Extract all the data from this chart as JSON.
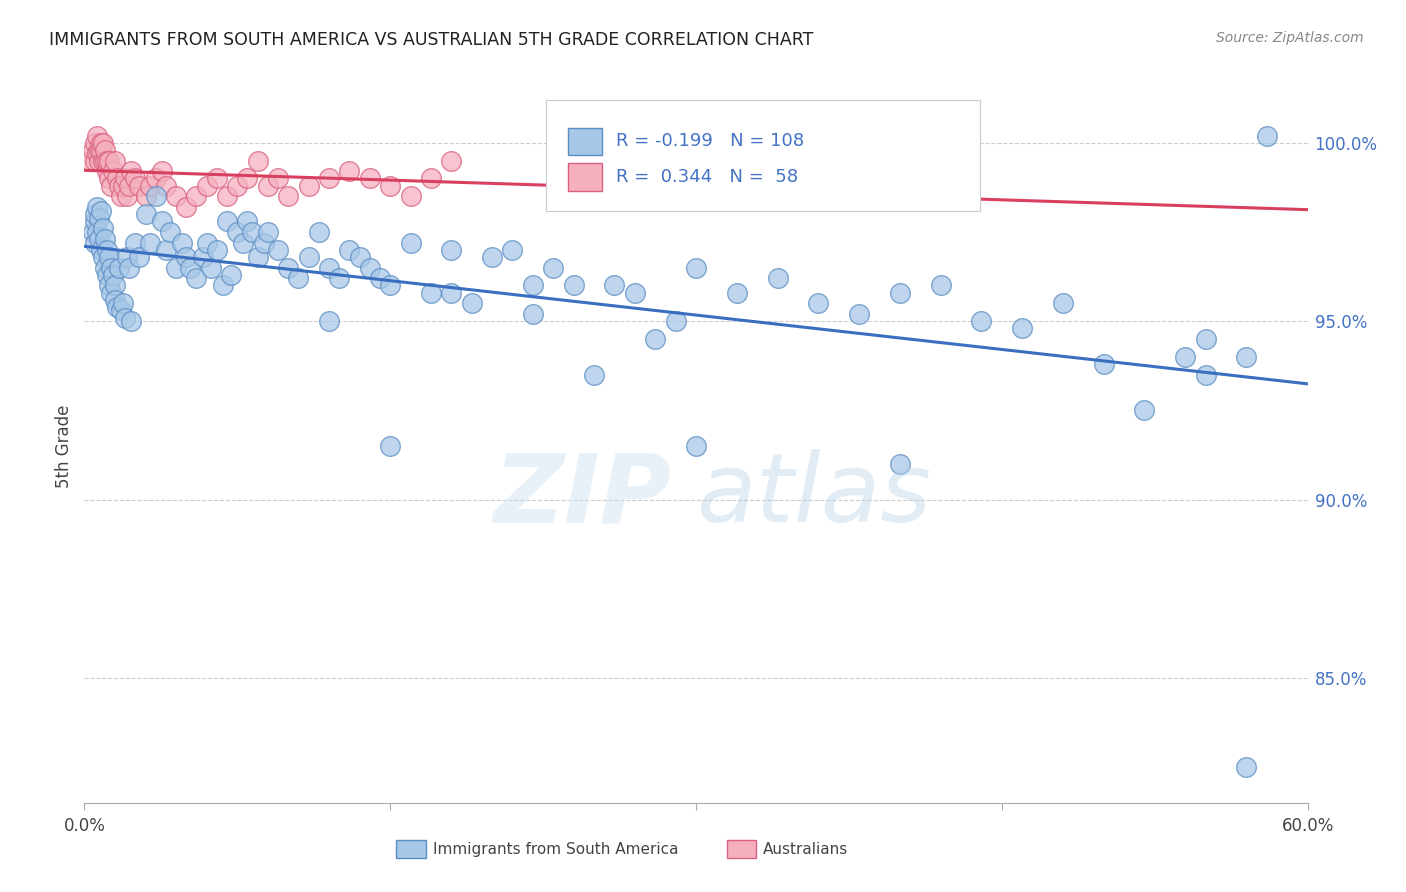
{
  "title": "IMMIGRANTS FROM SOUTH AMERICA VS AUSTRALIAN 5TH GRADE CORRELATION CHART",
  "source": "Source: ZipAtlas.com",
  "ylabel": "5th Grade",
  "r_blue": -0.199,
  "n_blue": 108,
  "r_pink": 0.344,
  "n_pink": 58,
  "xlim": [
    0.0,
    60.0
  ],
  "ylim": [
    81.5,
    101.5
  ],
  "color_blue_fill": "#a8c8e8",
  "color_blue_edge": "#5b8ec4",
  "color_blue_line": "#3a6fbf",
  "color_pink_fill": "#f5b0c0",
  "color_pink_edge": "#d96080",
  "color_pink_line": "#d94060",
  "legend_label_blue": "Immigrants from South America",
  "legend_label_pink": "Australians",
  "right_yticks": [
    85.0,
    90.0,
    95.0,
    100.0
  ],
  "right_ytick_labels": [
    "85.0%",
    "90.0%",
    "95.0%",
    "100.0%"
  ],
  "blue_x": [
    0.4,
    0.5,
    0.5,
    0.5,
    0.6,
    0.6,
    0.7,
    0.7,
    0.8,
    0.8,
    0.9,
    0.9,
    1.0,
    1.0,
    1.1,
    1.1,
    1.2,
    1.2,
    1.3,
    1.3,
    1.4,
    1.5,
    1.5,
    1.6,
    1.7,
    1.8,
    1.9,
    2.0,
    2.1,
    2.2,
    2.3,
    2.5,
    2.7,
    3.0,
    3.2,
    3.5,
    3.8,
    4.0,
    4.2,
    4.5,
    4.8,
    5.0,
    5.2,
    5.5,
    5.8,
    6.0,
    6.2,
    6.5,
    6.8,
    7.0,
    7.2,
    7.5,
    7.8,
    8.0,
    8.2,
    8.5,
    8.8,
    9.0,
    9.5,
    10.0,
    10.5,
    11.0,
    11.5,
    12.0,
    12.5,
    13.0,
    13.5,
    14.0,
    14.5,
    15.0,
    16.0,
    17.0,
    18.0,
    19.0,
    20.0,
    21.0,
    22.0,
    23.0,
    24.0,
    25.0,
    26.0,
    27.0,
    28.0,
    29.0,
    30.0,
    32.0,
    34.0,
    36.0,
    38.0,
    40.0,
    42.0,
    44.0,
    46.0,
    48.0,
    50.0,
    52.0,
    54.0,
    55.0,
    57.0,
    58.0,
    12.0,
    15.0,
    18.0,
    22.0,
    30.0,
    40.0,
    55.0,
    57.0
  ],
  "blue_y": [
    97.5,
    97.8,
    97.2,
    98.0,
    98.2,
    97.5,
    97.9,
    97.3,
    98.1,
    97.0,
    97.6,
    96.8,
    97.3,
    96.5,
    97.0,
    96.3,
    96.8,
    96.0,
    96.5,
    95.8,
    96.3,
    96.0,
    95.6,
    95.4,
    96.5,
    95.3,
    95.5,
    95.1,
    96.8,
    96.5,
    95.0,
    97.2,
    96.8,
    98.0,
    97.2,
    98.5,
    97.8,
    97.0,
    97.5,
    96.5,
    97.2,
    96.8,
    96.5,
    96.2,
    96.8,
    97.2,
    96.5,
    97.0,
    96.0,
    97.8,
    96.3,
    97.5,
    97.2,
    97.8,
    97.5,
    96.8,
    97.2,
    97.5,
    97.0,
    96.5,
    96.2,
    96.8,
    97.5,
    96.5,
    96.2,
    97.0,
    96.8,
    96.5,
    96.2,
    96.0,
    97.2,
    95.8,
    97.0,
    95.5,
    96.8,
    97.0,
    95.2,
    96.5,
    96.0,
    93.5,
    96.0,
    95.8,
    94.5,
    95.0,
    96.5,
    95.8,
    96.2,
    95.5,
    95.2,
    95.8,
    96.0,
    95.0,
    94.8,
    95.5,
    93.8,
    92.5,
    94.0,
    94.5,
    94.0,
    100.2,
    95.0,
    91.5,
    95.8,
    96.0,
    91.5,
    91.0,
    93.5,
    82.5
  ],
  "pink_x": [
    0.3,
    0.4,
    0.5,
    0.5,
    0.6,
    0.6,
    0.7,
    0.7,
    0.8,
    0.8,
    0.9,
    0.9,
    1.0,
    1.0,
    1.1,
    1.1,
    1.2,
    1.2,
    1.3,
    1.4,
    1.5,
    1.6,
    1.7,
    1.8,
    1.9,
    2.0,
    2.1,
    2.2,
    2.3,
    2.5,
    2.7,
    3.0,
    3.2,
    3.5,
    3.8,
    4.0,
    4.5,
    5.0,
    5.5,
    6.0,
    6.5,
    7.0,
    7.5,
    8.0,
    8.5,
    9.0,
    9.5,
    10.0,
    11.0,
    12.0,
    13.0,
    14.0,
    15.0,
    16.0,
    17.0,
    18.0,
    25.0,
    30.0
  ],
  "pink_y": [
    99.5,
    99.8,
    100.0,
    99.5,
    99.7,
    100.2,
    99.5,
    99.8,
    99.8,
    100.0,
    99.5,
    100.0,
    99.5,
    99.8,
    99.2,
    99.5,
    99.0,
    99.5,
    98.8,
    99.2,
    99.5,
    99.0,
    98.8,
    98.5,
    98.8,
    99.0,
    98.5,
    98.8,
    99.2,
    99.0,
    98.8,
    98.5,
    98.8,
    99.0,
    99.2,
    98.8,
    98.5,
    98.2,
    98.5,
    98.8,
    99.0,
    98.5,
    98.8,
    99.0,
    99.5,
    98.8,
    99.0,
    98.5,
    98.8,
    99.0,
    99.2,
    99.0,
    98.8,
    98.5,
    99.0,
    99.5,
    99.5,
    99.0
  ]
}
